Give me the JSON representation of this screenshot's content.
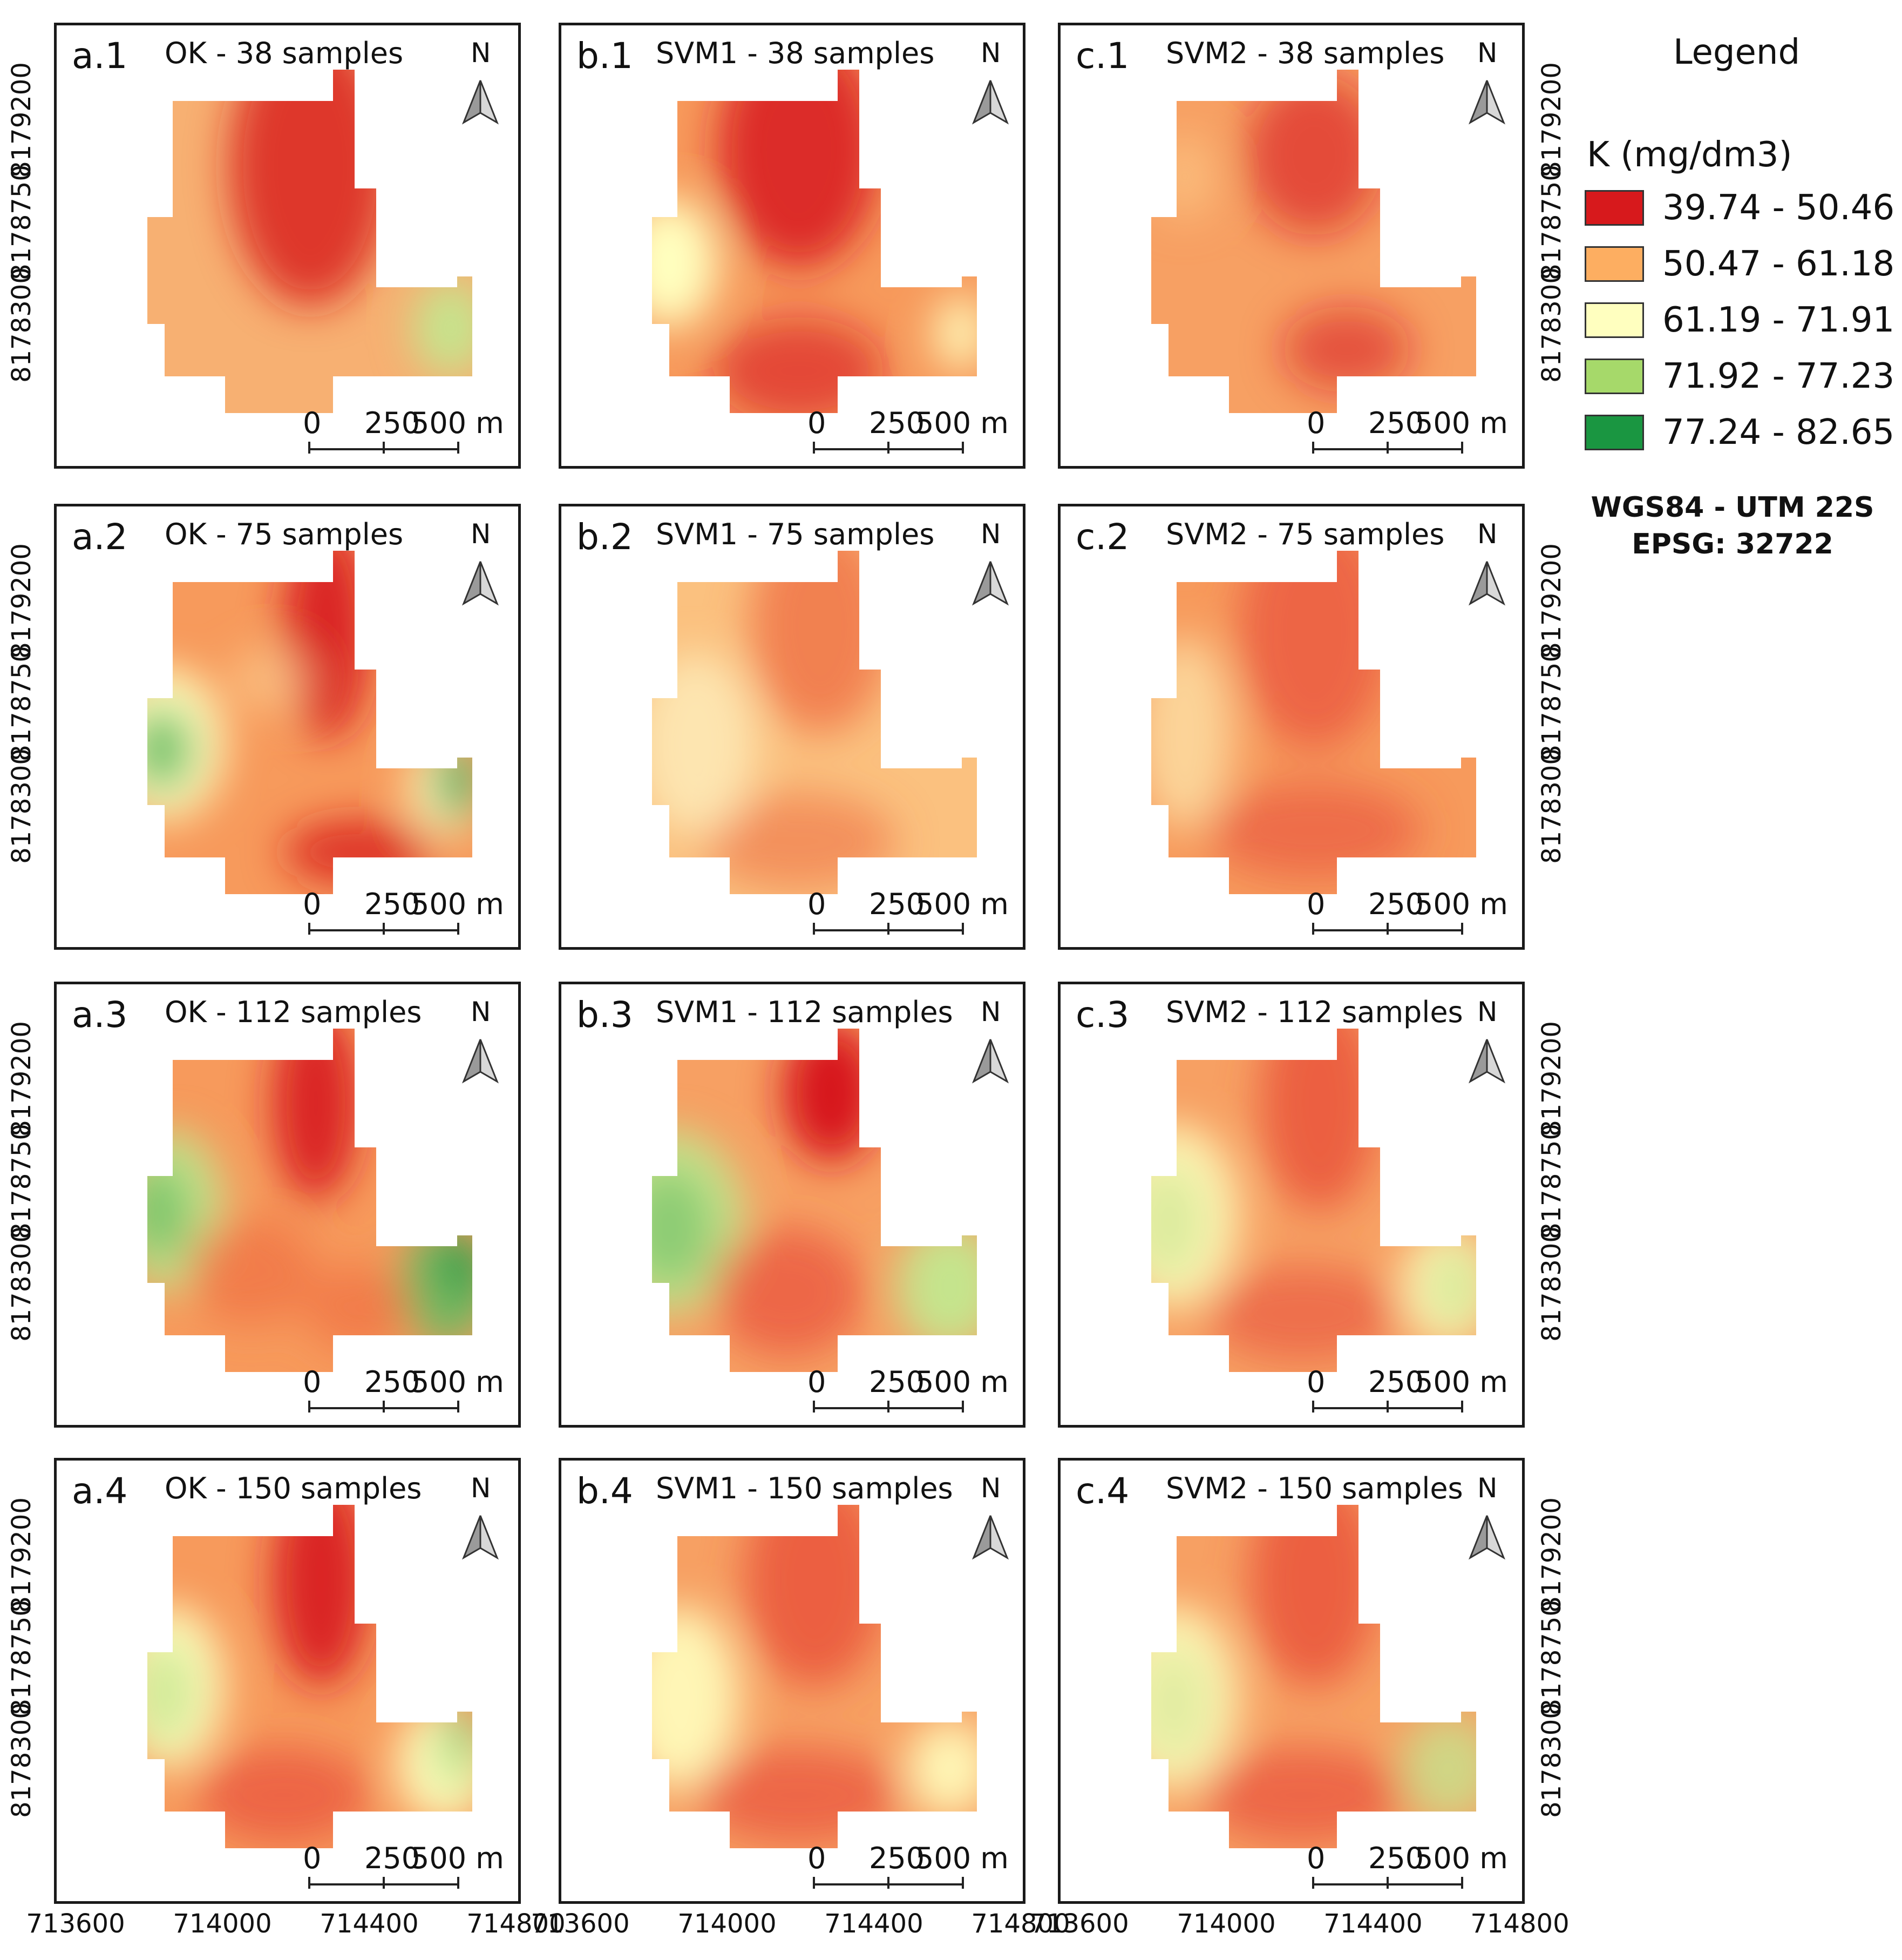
{
  "figure": {
    "crs_line1": "WGS84 - UTM 22S",
    "crs_line2": "EPSG: 32722",
    "north_label": "N",
    "scale_labels": [
      "0",
      "250",
      "500 m"
    ],
    "y_ticks": [
      "8179200",
      "8178750",
      "8178300"
    ],
    "x_ticks": [
      "713600",
      "714000",
      "714400",
      "714800"
    ]
  },
  "legend": {
    "title": "Legend",
    "variable": "K (mg/dm3)",
    "classes": [
      {
        "range": "39.74 - 50.46",
        "color": "#d7191c"
      },
      {
        "range": "50.47 - 61.18",
        "color": "#fdae61"
      },
      {
        "range": "61.19 - 71.91",
        "color": "#ffffbf"
      },
      {
        "range": "71.92 - 77.23",
        "color": "#a6d96a"
      },
      {
        "range": "77.24 - 82.65",
        "color": "#1a9641"
      }
    ]
  },
  "panels": [
    {
      "id": "a.1",
      "title": "OK - 38 samples",
      "method": "OK",
      "samples": 38
    },
    {
      "id": "b.1",
      "title": "SVM1 - 38 samples",
      "method": "SVM1",
      "samples": 38
    },
    {
      "id": "c.1",
      "title": "SVM2 - 38 samples",
      "method": "SVM2",
      "samples": 38
    },
    {
      "id": "a.2",
      "title": "OK - 75 samples",
      "method": "OK",
      "samples": 75
    },
    {
      "id": "b.2",
      "title": "SVM1 - 75 samples",
      "method": "SVM1",
      "samples": 75
    },
    {
      "id": "c.2",
      "title": "SVM2 - 75 samples",
      "method": "SVM2",
      "samples": 75
    },
    {
      "id": "a.3",
      "title": "OK - 112 samples",
      "method": "OK",
      "samples": 112
    },
    {
      "id": "b.3",
      "title": "SVM1 - 112 samples",
      "method": "SVM1",
      "samples": 112
    },
    {
      "id": "c.3",
      "title": "SVM2 - 112 samples",
      "method": "SVM2",
      "samples": 112
    },
    {
      "id": "a.4",
      "title": "OK - 150 samples",
      "method": "OK",
      "samples": 150
    },
    {
      "id": "b.4",
      "title": "SVM1 - 150 samples",
      "method": "SVM1",
      "samples": 150
    },
    {
      "id": "c.4",
      "title": "SVM2 - 150 samples",
      "method": "SVM2",
      "samples": 150
    }
  ]
}
